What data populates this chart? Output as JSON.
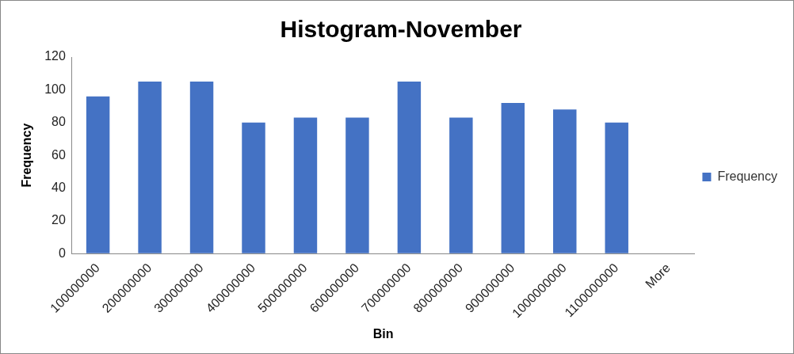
{
  "chart_data": {
    "type": "bar",
    "title": "Histogram-November",
    "xlabel": "Bin",
    "ylabel": "Frequency",
    "categories": [
      "100000000",
      "200000000",
      "300000000",
      "400000000",
      "500000000",
      "600000000",
      "700000000",
      "800000000",
      "900000000",
      "1000000000",
      "1100000000",
      "More"
    ],
    "series": [
      {
        "name": "Frequency",
        "color": "#4472c4",
        "values": [
          96,
          105,
          105,
          80,
          83,
          83,
          105,
          83,
          92,
          88,
          80,
          0
        ]
      }
    ],
    "ylim": [
      0,
      120
    ],
    "yticks": [
      0,
      20,
      40,
      60,
      80,
      100,
      120
    ],
    "grid": false,
    "legend": "right"
  }
}
